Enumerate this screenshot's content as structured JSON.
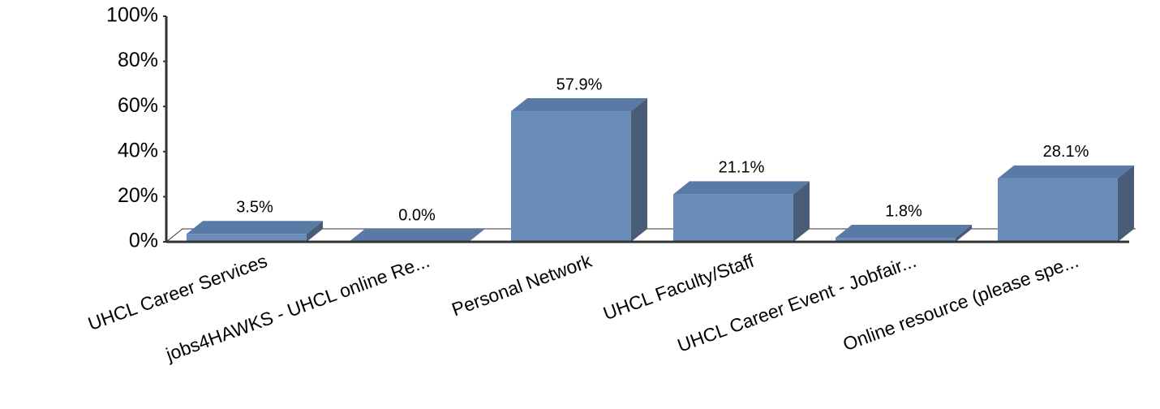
{
  "chart_data": {
    "type": "bar3d",
    "categories": [
      "UHCL Career Services",
      "jobs4HAWKS - UHCL online Re...",
      "Personal Network",
      "UHCL Faculty/Staff",
      "UHCL Career Event - Jobfair...",
      "Online resource (please spe..."
    ],
    "values": [
      3.5,
      0.0,
      57.9,
      21.1,
      1.8,
      28.1
    ],
    "value_labels": [
      "3.5%",
      "0.0%",
      "57.9%",
      "21.1%",
      "1.8%",
      "28.1%"
    ],
    "color": "#6a8db8",
    "ylim": [
      0,
      100
    ],
    "yticks": [
      {
        "value": 0,
        "label": "0%"
      },
      {
        "value": 20,
        "label": "20%"
      },
      {
        "value": 40,
        "label": "40%"
      },
      {
        "value": 60,
        "label": "60%"
      },
      {
        "value": 80,
        "label": "80%"
      },
      {
        "value": 100,
        "label": "100%"
      }
    ]
  }
}
